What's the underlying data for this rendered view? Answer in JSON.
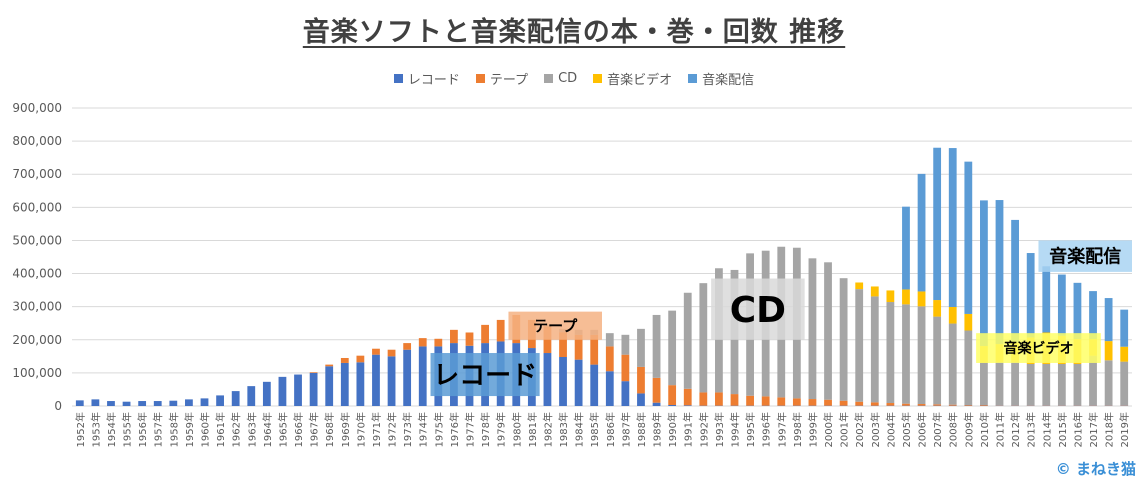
{
  "chart_data": {
    "type": "bar",
    "stacked": true,
    "title": "音楽ソフトと音楽配信の本・巻・回数 推移",
    "ylim": [
      0,
      900000
    ],
    "yticks": [
      "0",
      "100,000",
      "200,000",
      "300,000",
      "400,000",
      "500,000",
      "600,000",
      "700,000",
      "800,000",
      "900,000"
    ],
    "grid": true,
    "legend_position": "top",
    "categories": [
      "1952年",
      "1953年",
      "1954年",
      "1955年",
      "1956年",
      "1957年",
      "1958年",
      "1959年",
      "1960年",
      "1961年",
      "1962年",
      "1963年",
      "1964年",
      "1965年",
      "1966年",
      "1967年",
      "1968年",
      "1969年",
      "1970年",
      "1971年",
      "1972年",
      "1973年",
      "1974年",
      "1975年",
      "1976年",
      "1977年",
      "1978年",
      "1979年",
      "1980年",
      "1981年",
      "1982年",
      "1983年",
      "1984年",
      "1985年",
      "1986年",
      "1987年",
      "1988年",
      "1989年",
      "1990年",
      "1991年",
      "1992年",
      "1993年",
      "1994年",
      "1995年",
      "1996年",
      "1997年",
      "1998年",
      "1999年",
      "2000年",
      "2001年",
      "2002年",
      "2003年",
      "2004年",
      "2005年",
      "2006年",
      "2007年",
      "2008年",
      "2009年",
      "2010年",
      "2011年",
      "2012年",
      "2013年",
      "2014年",
      "2015年",
      "2016年",
      "2017年",
      "2018年",
      "2019年"
    ],
    "series": [
      {
        "name": "レコード",
        "color": "#4472C4",
        "values": [
          17000,
          20000,
          15000,
          13000,
          15000,
          15000,
          16000,
          20000,
          23000,
          32000,
          45000,
          60000,
          73000,
          88000,
          95000,
          100000,
          120000,
          130000,
          132000,
          155000,
          150000,
          170000,
          180000,
          180000,
          190000,
          182000,
          190000,
          195000,
          190000,
          175000,
          160000,
          148000,
          140000,
          125000,
          105000,
          75000,
          38000,
          10000,
          3000,
          2000,
          1000,
          1000,
          1000,
          1000,
          1000,
          1000,
          1000,
          1000,
          1000,
          1000,
          1000,
          1000,
          1000,
          1000,
          1000,
          1000,
          1000,
          1000,
          1000,
          1000,
          1000,
          1000,
          1000,
          1000,
          1000,
          1000,
          1000,
          1000
        ]
      },
      {
        "name": "テープ",
        "color": "#ED7D31",
        "values": [
          0,
          0,
          0,
          0,
          0,
          0,
          0,
          0,
          0,
          0,
          0,
          0,
          0,
          0,
          0,
          2000,
          5000,
          15000,
          20000,
          18000,
          20000,
          20000,
          25000,
          23000,
          40000,
          40000,
          55000,
          65000,
          85000,
          85000,
          80000,
          75000,
          75000,
          90000,
          75000,
          80000,
          80000,
          75000,
          60000,
          50000,
          40000,
          40000,
          35000,
          30000,
          28000,
          25000,
          22000,
          20000,
          18000,
          15000,
          12000,
          10000,
          8000,
          6000,
          5000,
          4000,
          3000,
          2000,
          2000,
          1000,
          1000,
          1000,
          1000,
          1000,
          1000,
          1000,
          1000,
          1000
        ]
      },
      {
        "name": "CD",
        "color": "#A5A5A5",
        "values": [
          0,
          0,
          0,
          0,
          0,
          0,
          0,
          0,
          0,
          0,
          0,
          0,
          0,
          0,
          0,
          0,
          0,
          0,
          0,
          0,
          0,
          0,
          0,
          0,
          0,
          0,
          0,
          0,
          0,
          0,
          4000,
          10000,
          15000,
          15000,
          40000,
          60000,
          115000,
          190000,
          225000,
          290000,
          330000,
          375000,
          375000,
          430000,
          440000,
          455000,
          455000,
          425000,
          415000,
          370000,
          340000,
          320000,
          305000,
          300000,
          295000,
          265000,
          245000,
          225000,
          128000,
          130000,
          130000,
          125000,
          125000,
          125000,
          125000,
          150000,
          136000,
          132000
        ]
      },
      {
        "name": "音楽ビデオ",
        "color": "#FFC000",
        "values": [
          0,
          0,
          0,
          0,
          0,
          0,
          0,
          0,
          0,
          0,
          0,
          0,
          0,
          0,
          0,
          0,
          0,
          0,
          0,
          0,
          0,
          0,
          0,
          0,
          0,
          0,
          0,
          0,
          0,
          0,
          0,
          0,
          0,
          0,
          0,
          0,
          0,
          0,
          0,
          0,
          0,
          0,
          0,
          0,
          0,
          0,
          0,
          0,
          0,
          0,
          20000,
          30000,
          35000,
          45000,
          45000,
          50000,
          50000,
          50000,
          50000,
          55000,
          60000,
          80000,
          95000,
          85000,
          75000,
          50000,
          58000,
          45000
        ]
      },
      {
        "name": "音楽配信",
        "color": "#5B9BD5",
        "values": [
          0,
          0,
          0,
          0,
          0,
          0,
          0,
          0,
          0,
          0,
          0,
          0,
          0,
          0,
          0,
          0,
          0,
          0,
          0,
          0,
          0,
          0,
          0,
          0,
          0,
          0,
          0,
          0,
          0,
          0,
          0,
          0,
          0,
          0,
          0,
          0,
          0,
          0,
          0,
          0,
          0,
          0,
          0,
          0,
          0,
          0,
          0,
          0,
          0,
          0,
          0,
          0,
          0,
          250000,
          355000,
          460000,
          480000,
          460000,
          440000,
          435000,
          370000,
          255000,
          200000,
          185000,
          170000,
          145000,
          130000,
          112000
        ]
      }
    ],
    "annotations": [
      {
        "text": "レコード",
        "color": "#5B9BD5",
        "font_px": 26,
        "from": "1975年",
        "to": "1981年",
        "y": [
          30000,
          160000
        ]
      },
      {
        "text": "テープ",
        "color": "#F4B183",
        "font_px": 15,
        "from": "1980年",
        "to": "1985年",
        "y": [
          200000,
          285000
        ]
      },
      {
        "text": "CD",
        "color": "#D9D9D9",
        "font_px": 36,
        "from": "1993年",
        "to": "1998年",
        "y": [
          200000,
          385000
        ]
      },
      {
        "text": "音楽ビデオ",
        "color": "#FFFF66",
        "font_px": 14,
        "from": "2010年",
        "to": "2017年",
        "y": [
          130000,
          220000
        ]
      },
      {
        "text": "音楽配信",
        "color": "#A9D4F2",
        "font_px": 18,
        "from": "2014年",
        "to": "2019年",
        "y": [
          405000,
          500000
        ]
      }
    ]
  },
  "copyright": "© まねき猫"
}
